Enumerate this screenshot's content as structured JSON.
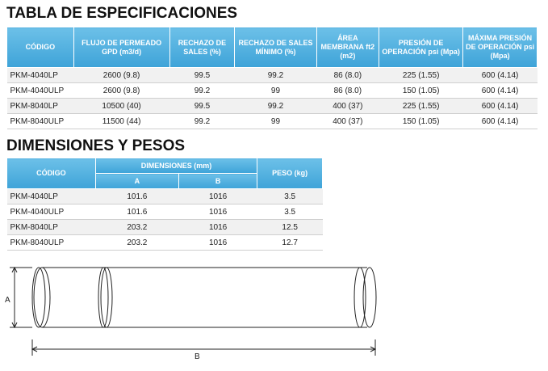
{
  "spec": {
    "title": "TABLA DE ESPECIFICACIONES",
    "headers": [
      "CÓDIGO",
      "FLUJO DE PERMEADO GPD (m3/d)",
      "RECHAZO DE SALES (%)",
      "RECHAZO DE SALES MÍNIMO (%)",
      "ÁREA MEMBRANA ft2 (m2)",
      "PRESIÓN DE OPERACIÓN psi (Mpa)",
      "MÁXIMA PRESIÓN DE OPERACIÓN psi (Mpa)"
    ],
    "rows": [
      [
        "PKM-4040LP",
        "2600 (9.8)",
        "99.5",
        "99.2",
        "86 (8.0)",
        "225 (1.55)",
        "600 (4.14)"
      ],
      [
        "PKM-4040ULP",
        "2600 (9.8)",
        "99.2",
        "99",
        "86 (8.0)",
        "150 (1.05)",
        "600 (4.14)"
      ],
      [
        "PKM-8040LP",
        "10500 (40)",
        "99.5",
        "99.2",
        "400 (37)",
        "225 (1.55)",
        "600 (4.14)"
      ],
      [
        "PKM-8040ULP",
        "11500 (44)",
        "99.2",
        "99",
        "400 (37)",
        "150 (1.05)",
        "600 (4.14)"
      ]
    ]
  },
  "dims": {
    "title": "DIMENSIONES Y PESOS",
    "headers": {
      "code": "CÓDIGO",
      "dimensions": "DIMENSIONES (mm)",
      "a": "A",
      "b": "B",
      "weight": "PESO (kg)"
    },
    "rows": [
      [
        "PKM-4040LP",
        "101.6",
        "1016",
        "3.5"
      ],
      [
        "PKM-4040ULP",
        "101.6",
        "1016",
        "3.5"
      ],
      [
        "PKM-8040LP",
        "203.2",
        "1016",
        "12.5"
      ],
      [
        "PKM-8040ULP",
        "203.2",
        "1016",
        "12.7"
      ]
    ]
  },
  "diagram": {
    "label_a": "A",
    "label_b": "B"
  }
}
